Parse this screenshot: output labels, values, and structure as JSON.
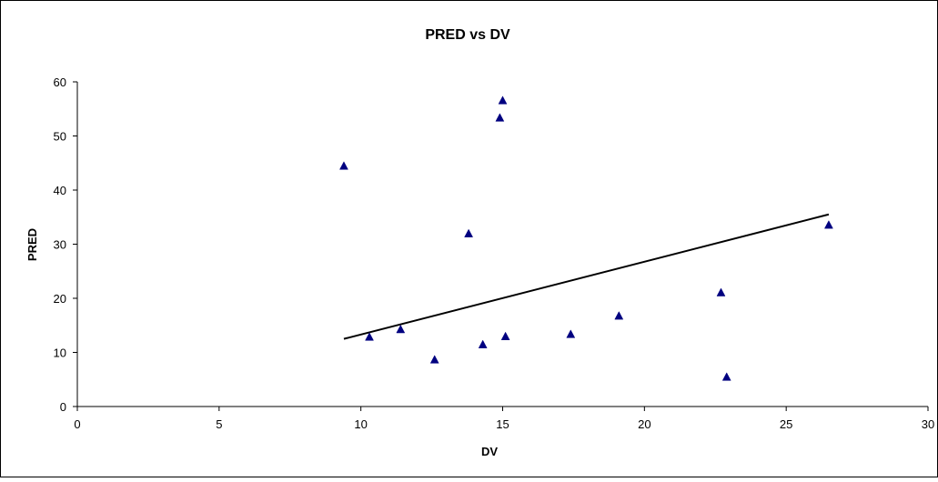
{
  "chart_data": {
    "type": "scatter",
    "title": "PRED vs DV",
    "xlabel": "DV",
    "ylabel": "PRED",
    "xlim": [
      0,
      30
    ],
    "ylim": [
      0,
      60
    ],
    "x_ticks": [
      "0",
      "5",
      "10",
      "15",
      "20",
      "25",
      "30"
    ],
    "y_ticks": [
      "0",
      "10",
      "20",
      "30",
      "40",
      "50",
      "60"
    ],
    "grid": false,
    "legend": "none",
    "marker_color": "#000080",
    "line_color": "#000000",
    "series": [
      {
        "marker": "triangle",
        "x": [
          9.4,
          10.3,
          11.4,
          12.6,
          13.8,
          14.3,
          14.9,
          15.0,
          15.1,
          17.4,
          19.1,
          22.7,
          22.9,
          26.5
        ],
        "y": [
          44.4,
          12.8,
          14.2,
          8.6,
          31.9,
          11.4,
          53.3,
          56.5,
          12.9,
          13.3,
          16.7,
          21.0,
          5.4,
          33.5
        ]
      }
    ],
    "trendline": {
      "x": [
        9.4,
        26.5
      ],
      "y": [
        12.5,
        35.5
      ]
    }
  }
}
